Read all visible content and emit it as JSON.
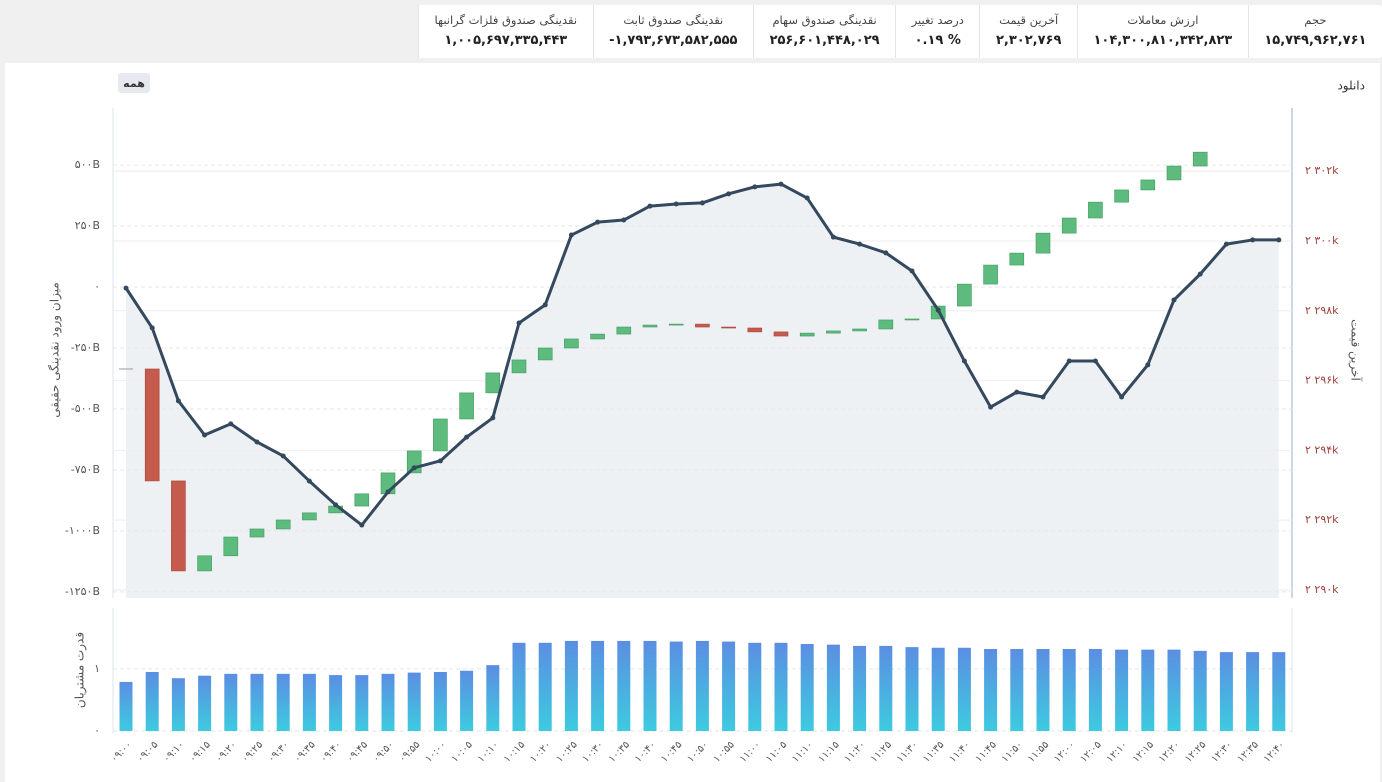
{
  "stats": [
    {
      "label": "حجم",
      "value": "۱۵,۷۴۹,۹۶۲,۷۶۱"
    },
    {
      "label": "ارزش معاملات",
      "value": "۱۰۴,۳۰۰,۸۱۰,۳۴۲,۸۲۳"
    },
    {
      "label": "آخرین قیمت",
      "value": "۲,۳۰۲,۷۶۹"
    },
    {
      "label": "درصد تغییر",
      "value": "۰.۱۹ %"
    },
    {
      "label": "نقدینگی صندوق سهام",
      "value": "۲۵۶,۶۰۱,۴۴۸,۰۲۹"
    },
    {
      "label": "نقدینگی صندوق ثابت",
      "value": "-۱,۷۹۳,۶۷۳,۵۸۲,۵۵۵"
    },
    {
      "label": "نقدینگی صندوق فلزات گرانبها",
      "value": "۱,۰۰۵,۶۹۷,۳۳۵,۴۴۳"
    }
  ],
  "range_button": "همه",
  "download": "دانلود",
  "chart_data": [
    {
      "type": "combo",
      "ylabel": "میزان ورود نقدینگی حقیقی",
      "y2label": "آخرین قیمت",
      "ylim": [
        -1275,
        734
      ],
      "yticks": [
        {
          "value": 500,
          "label": "۵۰۰B"
        },
        {
          "value": 250,
          "label": "۲۵۰B"
        },
        {
          "value": 0,
          "label": "۰"
        },
        {
          "value": -250,
          "label": "-۲۵۰B"
        },
        {
          "value": -500,
          "label": "-۵۰۰B"
        },
        {
          "value": -750,
          "label": "-۷۵۰B"
        },
        {
          "value": -1000,
          "label": "-۱۰۰۰B"
        },
        {
          "value": -1250,
          "label": "-۱۲۵۰B"
        }
      ],
      "y2lim": [
        2289770,
        2303810
      ],
      "y2ticks": [
        {
          "value": 2302000,
          "label": "۲ ۳۰۲k"
        },
        {
          "value": 2300000,
          "label": "۲ ۳۰۰k"
        },
        {
          "value": 2298000,
          "label": "۲ ۲۹۸k"
        },
        {
          "value": 2296000,
          "label": "۲ ۲۹۶k"
        },
        {
          "value": 2294000,
          "label": "۲ ۲۹۴k"
        },
        {
          "value": 2292000,
          "label": "۲ ۲۹۲k"
        },
        {
          "value": 2290000,
          "label": "۲ ۲۹۰k"
        }
      ],
      "grid": true,
      "series": [
        {
          "type": "waterfall",
          "up_color": "#5dbb7e",
          "down_color": "#c45b4d",
          "values": [
            -336,
            -459,
            -369,
            62,
            77,
            33,
            37,
            29,
            28,
            50,
            86,
            90,
            131,
            107,
            82,
            53,
            49,
            37,
            20,
            29,
            8,
            4,
            -12,
            -4,
            -16,
            -17,
            12,
            9,
            8,
            37,
            4,
            53,
            90,
            78,
            49,
            82,
            62,
            65,
            50,
            41,
            57,
            57,
            null,
            null,
            null
          ]
        },
        {
          "type": "line",
          "axis": "y2",
          "color": "#34495e",
          "area_color": "#eef1f4",
          "values": [
            2298650,
            2297510,
            2295420,
            2294440,
            2294760,
            2294240,
            2293840,
            2293120,
            2292440,
            2291860,
            2292810,
            2293500,
            2293700,
            2294380,
            2294930,
            2297650,
            2298170,
            2300170,
            2300540,
            2300600,
            2301000,
            2301060,
            2301090,
            2301350,
            2301550,
            2301630,
            2301230,
            2300110,
            2299910,
            2299660,
            2299140,
            2298020,
            2296560,
            2295240,
            2295670,
            2295530,
            2296560,
            2296560,
            2295530,
            2296450,
            2298310,
            2299050,
            2299910,
            2300030,
            2300030
          ]
        }
      ]
    },
    {
      "type": "bar",
      "ylabel": "قدرت مشتریان",
      "ylim": [
        0,
        1.98
      ],
      "yticks": [
        {
          "value": 0,
          "label": "۰"
        },
        {
          "value": 1,
          "label": "۱"
        }
      ],
      "grid": true,
      "colors": [
        "#5b8ee2",
        "#3dcbe0"
      ],
      "categories": [
        "۰۹:۰۰",
        "۰۹:۰۵",
        "۰۹:۱۰",
        "۰۹:۱۵",
        "۰۹:۲۰",
        "۰۹:۲۵",
        "۰۹:۳۰",
        "۰۹:۳۵",
        "۰۹:۴۰",
        "۰۹:۴۵",
        "۰۹:۵۰",
        "۰۹:۵۵",
        "۱۰:۰۰",
        "۱۰:۰۵",
        "۱۰:۱۰",
        "۱۰:۱۵",
        "۱۰:۲۰",
        "۱۰:۲۵",
        "۱۰:۳۰",
        "۱۰:۳۵",
        "۱۰:۴۰",
        "۱۰:۴۵",
        "۱۰:۵۰",
        "۱۰:۵۵",
        "۱۱:۰۰",
        "۱۱:۰۵",
        "۱۱:۱۰",
        "۱۱:۱۵",
        "۱۱:۲۰",
        "۱۱:۲۵",
        "۱۱:۳۰",
        "۱۱:۳۵",
        "۱۱:۴۰",
        "۱۱:۴۵",
        "۱۱:۵۰",
        "۱۱:۵۵",
        "۱۲:۰۰",
        "۱۲:۰۵",
        "۱۲:۱۰",
        "۱۲:۱۵",
        "۱۲:۲۰",
        "۱۲:۲۵",
        "۱۲:۳۰",
        "۱۲:۳۵",
        "۱۲:۴۰"
      ],
      "values": [
        0.79,
        0.95,
        0.85,
        0.89,
        0.92,
        0.92,
        0.92,
        0.92,
        0.9,
        0.9,
        0.92,
        0.94,
        0.95,
        0.97,
        1.06,
        1.42,
        1.42,
        1.45,
        1.45,
        1.45,
        1.45,
        1.44,
        1.45,
        1.44,
        1.42,
        1.42,
        1.4,
        1.39,
        1.37,
        1.37,
        1.35,
        1.34,
        1.34,
        1.32,
        1.32,
        1.32,
        1.32,
        1.32,
        1.31,
        1.31,
        1.31,
        1.29,
        1.27,
        1.27,
        1.27
      ]
    }
  ]
}
